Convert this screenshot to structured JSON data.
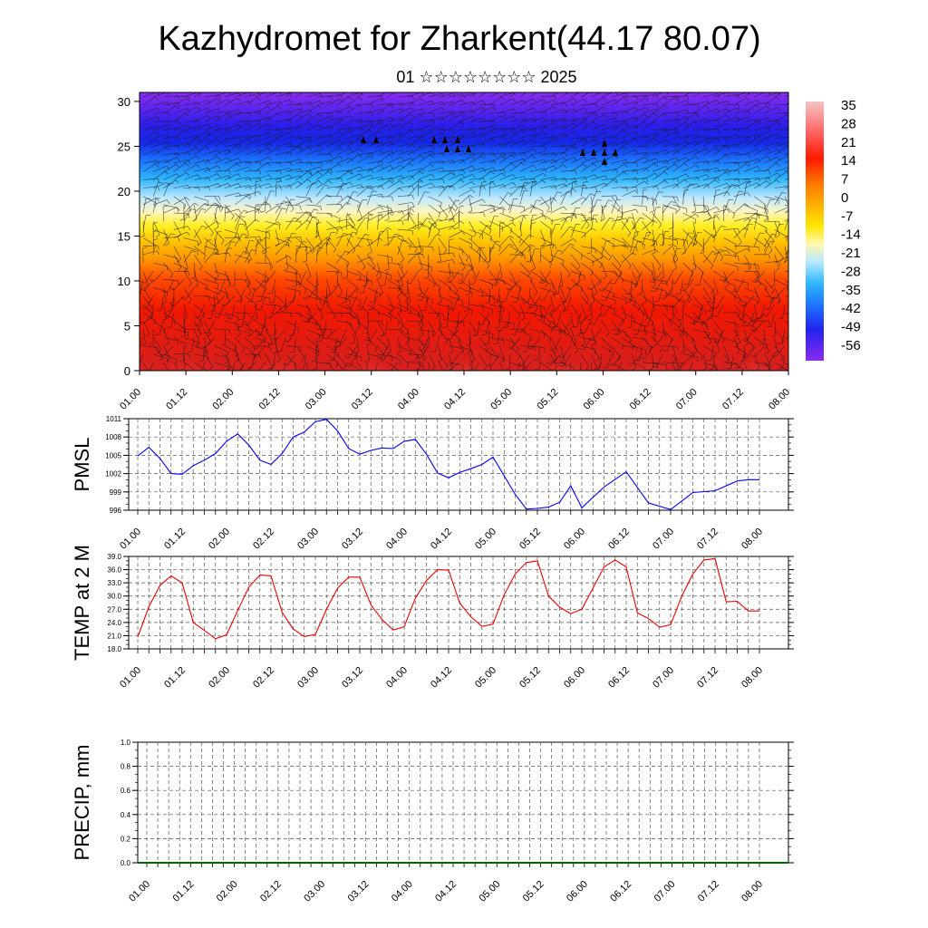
{
  "title": "Kazhydromet for Zharkent(44.17 80.07)",
  "subtitle": "01 ☆☆☆☆☆☆☆☆ 2025",
  "colors": {
    "pmsl_line": "#0000ee",
    "temp_line": "#ee0000",
    "grid": "#555555"
  },
  "chart_data": [
    {
      "id": "profile",
      "type": "heatmap",
      "description_free": true,
      "y_ticks": [
        "0",
        "5",
        "10",
        "15",
        "20",
        "25",
        "30"
      ],
      "y_values": [
        0,
        5,
        10,
        15,
        20,
        25,
        30
      ],
      "ylim": [
        0,
        31
      ],
      "x_tick_labels": [
        "01.00",
        "01.12",
        "02.00",
        "02.12",
        "03.00",
        "03.12",
        "04.00",
        "04.12",
        "05.00",
        "05.12",
        "06.00",
        "06.12",
        "07.00",
        "07.12",
        "08.00"
      ],
      "colorbar_labels": [
        "35",
        "28",
        "21",
        "14",
        "7",
        "0",
        "-7",
        "-14",
        "-21",
        "-28",
        "-35",
        "-42",
        "-49",
        "-56"
      ],
      "colorbar_range": [
        -63,
        42
      ],
      "surface_temp_peaks": [
        0.5,
        1.5,
        2.5,
        3.5,
        4.6,
        5.5,
        6.6
      ]
    },
    {
      "id": "pmsl",
      "type": "line",
      "ylabel": "PMSL",
      "ylim": [
        996,
        1011
      ],
      "y_ticks": [
        "996",
        "999",
        "1002",
        "1005",
        "1008",
        "1011"
      ],
      "y_tick_values": [
        996,
        999,
        1002,
        1005,
        1008,
        1011
      ],
      "x_tick_labels": [
        "01.00",
        "01.12",
        "02.00",
        "02.12",
        "03.00",
        "03.12",
        "04.00",
        "04.12",
        "05.00",
        "05.12",
        "06.00",
        "06.12",
        "07.00",
        "07.12",
        "08.00"
      ],
      "x": [
        0,
        0.125,
        0.25,
        0.375,
        0.5,
        0.625,
        0.75,
        0.875,
        1,
        1.125,
        1.25,
        1.375,
        1.5,
        1.625,
        1.75,
        1.875,
        2,
        2.125,
        2.25,
        2.375,
        2.5,
        2.625,
        2.75,
        2.875,
        3,
        3.125,
        3.25,
        3.375,
        3.5,
        3.625,
        3.75,
        3.875,
        4,
        4.25,
        4.375,
        4.5,
        4.625,
        4.75,
        4.875,
        5,
        5.25,
        5.5,
        5.75,
        6,
        6.25,
        6.5,
        6.75,
        6.875,
        7
      ],
      "values": [
        1004.9,
        1006.3,
        1004.5,
        1002.0,
        1001.9,
        1003.3,
        1004.2,
        1005.3,
        1007.3,
        1008.5,
        1006.7,
        1004.2,
        1003.5,
        1005.3,
        1008.0,
        1008.8,
        1010.5,
        1010.9,
        1009.0,
        1006.1,
        1005.2,
        1005.8,
        1006.2,
        1006.1,
        1007.3,
        1007.6,
        1005.2,
        1002.1,
        1001.3,
        1002.2,
        1002.8,
        1003.5,
        1004.7,
        998.6,
        996.2,
        996.3,
        996.5,
        997.3,
        1000.0,
        996.4,
        999.8,
        1002.3,
        997.2,
        996.1,
        998.9,
        999.2,
        1000.8,
        1001.0,
        1001.0
      ]
    },
    {
      "id": "temp",
      "type": "line",
      "ylabel": "TEMP at 2 M",
      "ylim": [
        18,
        39
      ],
      "y_ticks": [
        "18.0",
        "21.0",
        "24.0",
        "27.0",
        "30.0",
        "33.0",
        "36.0",
        "39.0"
      ],
      "y_tick_values": [
        18,
        21,
        24,
        27,
        30,
        33,
        36,
        39
      ],
      "x_tick_labels": [
        "01.00",
        "01.12",
        "02.00",
        "02.12",
        "03.00",
        "03.12",
        "04.00",
        "04.12",
        "05.00",
        "05.12",
        "06.00",
        "06.12",
        "07.00",
        "07.12",
        "08.00"
      ],
      "x": [
        0,
        0.125,
        0.25,
        0.375,
        0.5,
        0.625,
        0.75,
        0.875,
        1,
        1.125,
        1.25,
        1.375,
        1.5,
        1.625,
        1.75,
        1.875,
        2,
        2.125,
        2.25,
        2.375,
        2.5,
        2.625,
        2.75,
        2.875,
        3,
        3.125,
        3.25,
        3.375,
        3.5,
        3.625,
        3.75,
        3.875,
        4,
        4.125,
        4.25,
        4.375,
        4.5,
        4.625,
        4.75,
        4.875,
        5,
        5.125,
        5.25,
        5.375,
        5.5,
        5.625,
        5.75,
        5.875,
        6,
        6.125,
        6.25,
        6.375,
        6.5,
        6.625,
        6.75,
        6.875,
        7
      ],
      "values": [
        20.7,
        27.6,
        32.4,
        34.6,
        33.0,
        24.0,
        22.2,
        20.3,
        21.2,
        26.7,
        32.0,
        34.8,
        34.6,
        26.3,
        22.5,
        20.8,
        21.3,
        27.0,
        31.8,
        34.3,
        34.3,
        28.0,
        24.7,
        22.3,
        23.0,
        29.5,
        33.5,
        36.0,
        35.9,
        28.4,
        25.3,
        23.1,
        23.6,
        30.3,
        35.0,
        37.6,
        38.0,
        30.0,
        27.5,
        26.0,
        27.0,
        31.8,
        36.6,
        38.2,
        36.6,
        26.2,
        24.9,
        22.9,
        23.5,
        30.0,
        35.0,
        38.2,
        38.5,
        28.7,
        28.8,
        26.6,
        26.6
      ]
    },
    {
      "id": "precip",
      "type": "bar",
      "ylabel": "PRECIP, mm",
      "ylim": [
        0,
        1
      ],
      "y_ticks": [
        "0.0",
        "0.2",
        "0.4",
        "0.6",
        "0.8",
        "1.0"
      ],
      "y_tick_values": [
        0,
        0.2,
        0.4,
        0.6,
        0.8,
        1.0
      ],
      "x_tick_labels": [
        "01.00",
        "01.12",
        "02.00",
        "02.12",
        "03.00",
        "03.12",
        "04.00",
        "04.12",
        "05.00",
        "05.12",
        "06.00",
        "06.12",
        "07.00",
        "07.12",
        "08.00"
      ],
      "values": []
    }
  ]
}
